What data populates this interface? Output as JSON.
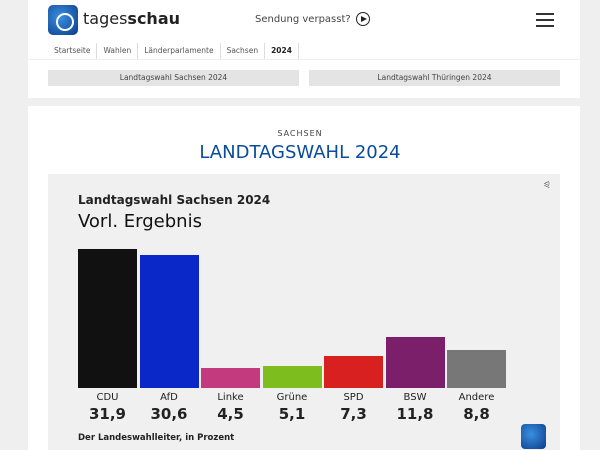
{
  "header": {
    "brand_light": "tages",
    "brand_bold": "schau",
    "missed": "Sendung verpasst?"
  },
  "breadcrumb": [
    "Startseite",
    "Wahlen",
    "Länderparlamente",
    "Sachsen",
    "2024"
  ],
  "tabs": [
    "Landtagswahl Sachsen 2024",
    "Landtagswahl Thüringen 2024"
  ],
  "section": {
    "kicker": "SACHSEN",
    "title": "LANDTAGSWAHL 2024"
  },
  "chart_data": {
    "type": "bar",
    "title": "Landtagswahl Sachsen 2024",
    "subtitle": "Vorl. Ergebnis",
    "source": "Der Landeswahlleiter, in Prozent",
    "categories": [
      "CDU",
      "AfD",
      "Linke",
      "Grüne",
      "SPD",
      "BSW",
      "Andere"
    ],
    "values": [
      31.9,
      30.6,
      4.5,
      5.1,
      7.3,
      11.8,
      8.8
    ],
    "value_labels": [
      "31,9",
      "30,6",
      "4,5",
      "5,1",
      "7,3",
      "11,8",
      "8,8"
    ],
    "colors": [
      "#111111",
      "#0a28c8",
      "#c43a7f",
      "#7dbd1d",
      "#d82020",
      "#7b1f6a",
      "#777777"
    ],
    "ylim": [
      0,
      31.9
    ],
    "grid": false
  }
}
